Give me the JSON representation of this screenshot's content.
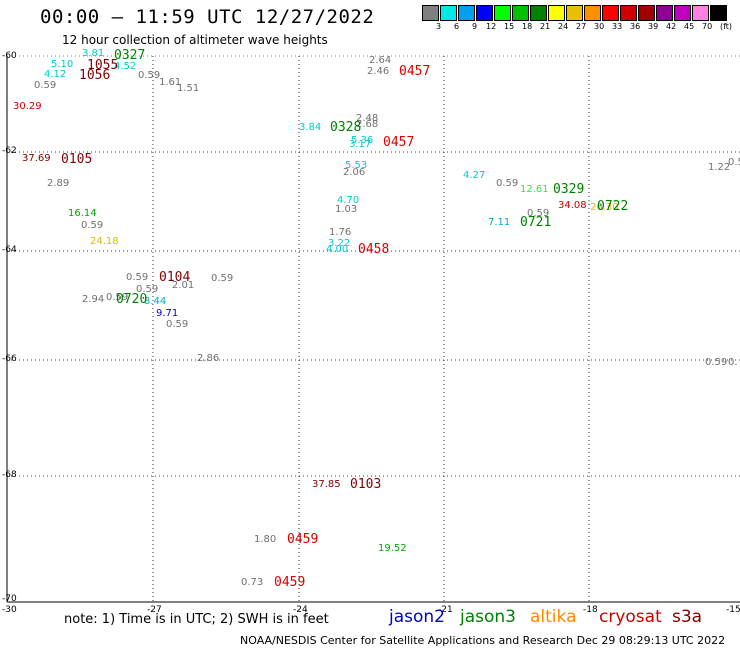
{
  "title": "00:00 — 11:59 UTC 12/27/2022",
  "subtitle": "12 hour collection of altimeter wave heights",
  "note": "note:  1) Time is in UTC;  2) SWH is in feet",
  "footer": "NOAA/NESDIS Center for Satellite Applications and Research     Dec 29 08:29:13 UTC 2022",
  "legend": {
    "labels": [
      "3",
      "6",
      "9",
      "12",
      "15",
      "18",
      "21",
      "24",
      "27",
      "30",
      "33",
      "36",
      "39",
      "42",
      "45",
      "70",
      "(ft)"
    ],
    "colors": [
      "#808080",
      "#00e8e8",
      "#00a0f0",
      "#0000ff",
      "#00ff00",
      "#00c000",
      "#008000",
      "#ffff00",
      "#e8c000",
      "#ff9000",
      "#ff0000",
      "#d00000",
      "#a00000",
      "#900090",
      "#c000c0",
      "#ff80e0",
      "#000000"
    ]
  },
  "satellites": [
    {
      "name": "jason2",
      "color": "#0000cc"
    },
    {
      "name": "jason3",
      "color": "#008000"
    },
    {
      "name": "altika",
      "color": "#ff8800"
    },
    {
      "name": "cryosat",
      "color": "#cc0000"
    },
    {
      "name": "s3a",
      "color": "#800000"
    }
  ],
  "lat_labels": [
    "-60",
    "-62",
    "-64",
    "-66",
    "-68",
    "-70"
  ],
  "lon_labels": [
    "-30",
    "-27",
    "-24",
    "-21",
    "-18",
    "-15"
  ],
  "values": [
    {
      "t": "3.81",
      "c": "#00cccc"
    },
    {
      "t": "5.10",
      "c": "#00cccc"
    },
    {
      "t": "4.12",
      "c": "#00cccc"
    },
    {
      "t": "4.52",
      "c": "#00cccc"
    },
    {
      "t": "0.59",
      "c": "#707070"
    },
    {
      "t": "0.59",
      "c": "#707070"
    },
    {
      "t": "1.61",
      "c": "#707070"
    },
    {
      "t": "1.51",
      "c": "#707070"
    },
    {
      "t": "30.29",
      "c": "#cc0000"
    },
    {
      "t": "2.64",
      "c": "#707070"
    },
    {
      "t": "2.46",
      "c": "#707070"
    },
    {
      "t": "3.84",
      "c": "#00cccc"
    },
    {
      "t": "2.48",
      "c": "#707070"
    },
    {
      "t": "2.68",
      "c": "#707070"
    },
    {
      "t": "5.36",
      "c": "#00cccc"
    },
    {
      "t": "3.17",
      "c": "#00cccc"
    },
    {
      "t": "37.69",
      "c": "#800000"
    },
    {
      "t": "2.89",
      "c": "#707070"
    },
    {
      "t": "5.53",
      "c": "#00cccc"
    },
    {
      "t": "2.06",
      "c": "#707070"
    },
    {
      "t": "4.27",
      "c": "#00cccc"
    },
    {
      "t": "0.59",
      "c": "#707070"
    },
    {
      "t": "12.61",
      "c": "#44dd44"
    },
    {
      "t": "1.22",
      "c": "#707070"
    },
    {
      "t": "0.5",
      "c": "#707070"
    },
    {
      "t": "16.14",
      "c": "#00aa00"
    },
    {
      "t": "0.59",
      "c": "#707070"
    },
    {
      "t": "24.18",
      "c": "#ddbb00"
    },
    {
      "t": "4.70",
      "c": "#00cccc"
    },
    {
      "t": "1.03",
      "c": "#707070"
    },
    {
      "t": "34.08",
      "c": "#cc0000"
    },
    {
      "t": "26.30",
      "c": "#ddbb00"
    },
    {
      "t": "0.59",
      "c": "#707070"
    },
    {
      "t": "7.11",
      "c": "#00aacc"
    },
    {
      "t": "1.76",
      "c": "#707070"
    },
    {
      "t": "3.22",
      "c": "#00cccc"
    },
    {
      "t": "4.00",
      "c": "#00cccc"
    },
    {
      "t": "0.59",
      "c": "#707070"
    },
    {
      "t": "0.59",
      "c": "#707070"
    },
    {
      "t": "2.01",
      "c": "#707070"
    },
    {
      "t": "0.59",
      "c": "#707070"
    },
    {
      "t": "2.94",
      "c": "#707070"
    },
    {
      "t": "0.59",
      "c": "#707070"
    },
    {
      "t": "8.44",
      "c": "#00aacc"
    },
    {
      "t": "9.71",
      "c": "#0000cc"
    },
    {
      "t": "0.59",
      "c": "#707070"
    },
    {
      "t": "2.86",
      "c": "#707070"
    },
    {
      "t": "0.59",
      "c": "#707070"
    },
    {
      "t": "0.",
      "c": "#707070"
    },
    {
      "t": "37.85",
      "c": "#800000"
    },
    {
      "t": "1.80",
      "c": "#707070"
    },
    {
      "t": "19.52",
      "c": "#00aa00"
    },
    {
      "t": "0.73",
      "c": "#707070"
    }
  ],
  "passes": [
    {
      "t": "0327",
      "c": "#008000"
    },
    {
      "t": "1055",
      "c": "#800000"
    },
    {
      "t": "1056",
      "c": "#800000"
    },
    {
      "t": "0457",
      "c": "#dd0000"
    },
    {
      "t": "0328",
      "c": "#008000"
    },
    {
      "t": "0457",
      "c": "#dd0000"
    },
    {
      "t": "0105",
      "c": "#800000"
    },
    {
      "t": "0329",
      "c": "#008000"
    },
    {
      "t": "0722",
      "c": "#008000"
    },
    {
      "t": "0721",
      "c": "#008000"
    },
    {
      "t": "0458",
      "c": "#dd0000"
    },
    {
      "t": "0104",
      "c": "#800000"
    },
    {
      "t": "0720",
      "c": "#008000"
    },
    {
      "t": "0103",
      "c": "#800000"
    },
    {
      "t": "0459",
      "c": "#dd0000"
    },
    {
      "t": "0459",
      "c": "#dd0000"
    }
  ]
}
